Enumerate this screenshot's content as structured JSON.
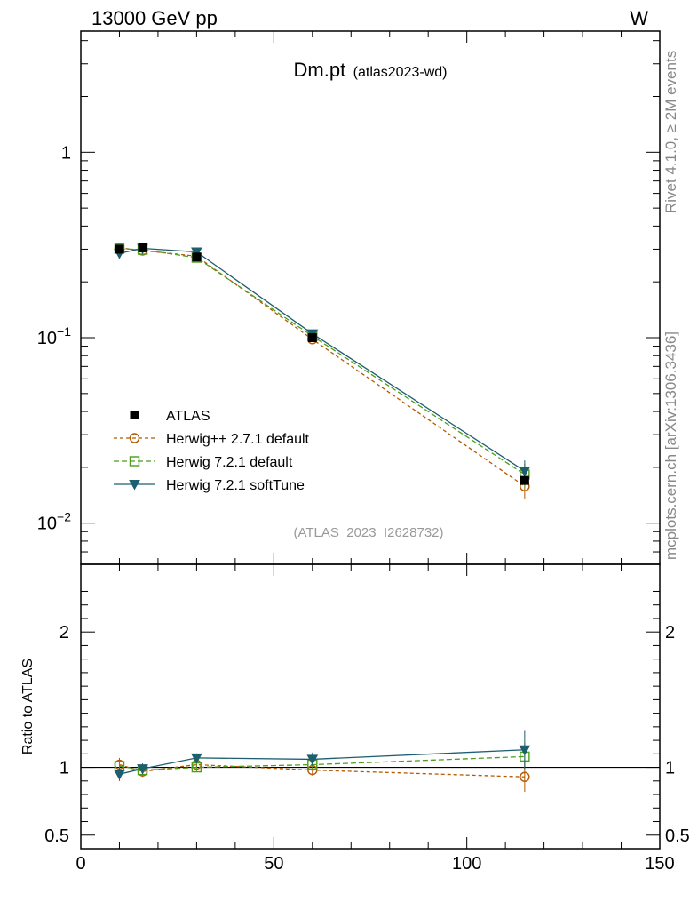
{
  "header": {
    "energy_label": "13000 GeV pp",
    "process_label": "W"
  },
  "side_labels": {
    "rivet": "Rivet 4.1.0, ≥ 2M events",
    "mcplots": "mcplots.cern.ch [arXiv:1306.3436]"
  },
  "chart_data": {
    "type": "line",
    "title": "Dm.pt",
    "subtitle": "(atlas2023-wd)",
    "analysis_label": "(ATLAS_2023_I2628732)",
    "xlabel": "",
    "ylabel_ratio": "Ratio to ATLAS",
    "xlim": [
      0,
      150
    ],
    "ylim_main": [
      0.006,
      4.5
    ],
    "yscale_main": "log",
    "ylim_ratio": [
      0.4,
      2.5
    ],
    "x_ticks": [
      "0",
      "50",
      "100",
      "150"
    ],
    "y_ticks_main": [
      {
        "value": 1,
        "base": "1",
        "exp": ""
      },
      {
        "value": 0.1,
        "base": "10",
        "exp": "−1"
      },
      {
        "value": 0.01,
        "base": "10",
        "exp": "−2"
      }
    ],
    "y_ticks_ratio": [
      {
        "value": 2,
        "label": "2"
      },
      {
        "value": 1,
        "label": "1"
      },
      {
        "value": 0.5,
        "label": "0.5"
      }
    ],
    "legend_position": "lower-left",
    "x": [
      10,
      16,
      30,
      60,
      115
    ],
    "data": {
      "name": "ATLAS",
      "values": [
        0.3,
        0.305,
        0.272,
        0.1,
        0.017
      ]
    },
    "series": [
      {
        "name": "Herwig++ 2.7.1 default",
        "color": "#b35900",
        "marker": "open-circle",
        "dash": "4,3",
        "values": [
          0.305,
          0.295,
          0.275,
          0.098,
          0.0158
        ],
        "ratio": [
          1.02,
          0.97,
          1.02,
          0.98,
          0.93
        ],
        "ratio_err": [
          0.05,
          0.04,
          0.03,
          0.04,
          0.11
        ]
      },
      {
        "name": "Herwig 7.2.1 default",
        "color": "#4d9c1a",
        "marker": "open-square",
        "dash": "6,3",
        "values": [
          0.302,
          0.298,
          0.27,
          0.102,
          0.0183
        ],
        "ratio": [
          1.01,
          0.98,
          1.0,
          1.02,
          1.08
        ],
        "ratio_err": [
          0.04,
          0.04,
          0.03,
          0.04,
          0.1
        ]
      },
      {
        "name": "Herwig 7.2.1 softTune",
        "color": "#1d5f6e",
        "marker": "filled-triangle-down",
        "dash": "",
        "values": [
          0.285,
          0.303,
          0.29,
          0.105,
          0.0191
        ],
        "ratio": [
          0.95,
          0.99,
          1.07,
          1.06,
          1.13
        ],
        "ratio_err": [
          0.05,
          0.04,
          0.03,
          0.05,
          0.14
        ]
      }
    ]
  }
}
